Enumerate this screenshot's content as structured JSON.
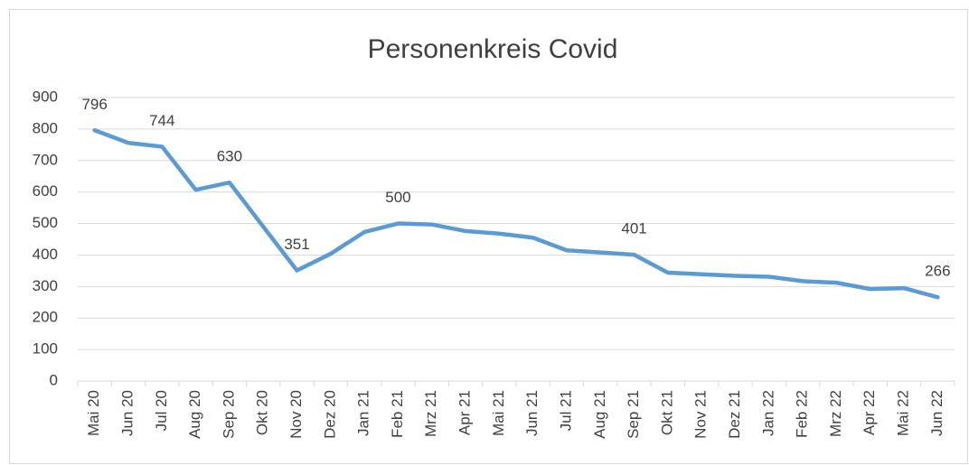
{
  "chart_data": {
    "type": "line",
    "title": "Personenkreis Covid",
    "categories": [
      "Mai 20",
      "Jun 20",
      "Jul 20",
      "Aug 20",
      "Sep 20",
      "Okt 20",
      "Nov 20",
      "Dez 20",
      "Jan 21",
      "Feb 21",
      "Mrz 21",
      "Apr 21",
      "Mai 21",
      "Jun 21",
      "Jul 21",
      "Aug 21",
      "Sep 21",
      "Okt 21",
      "Nov 21",
      "Dez 21",
      "Jan 22",
      "Feb 22",
      "Mrz 22",
      "Apr 22",
      "Mai 22",
      "Jun 22"
    ],
    "series": [
      {
        "name": "Personenkreis Covid",
        "color": "#5b9bd5",
        "values": [
          796,
          756,
          744,
          607,
          630,
          490,
          351,
          404,
          473,
          500,
          497,
          476,
          468,
          455,
          415,
          408,
          401,
          344,
          339,
          334,
          331,
          317,
          312,
          292,
          295,
          266
        ],
        "value_labels": [
          "796",
          null,
          "744",
          null,
          "630",
          null,
          "351",
          null,
          null,
          "500",
          null,
          null,
          null,
          null,
          null,
          null,
          "401",
          null,
          null,
          null,
          null,
          null,
          null,
          null,
          null,
          "266"
        ]
      }
    ],
    "ylim": [
      0,
      900
    ],
    "yticks": [
      0,
      100,
      200,
      300,
      400,
      500,
      600,
      700,
      800,
      900
    ],
    "grid": true
  }
}
